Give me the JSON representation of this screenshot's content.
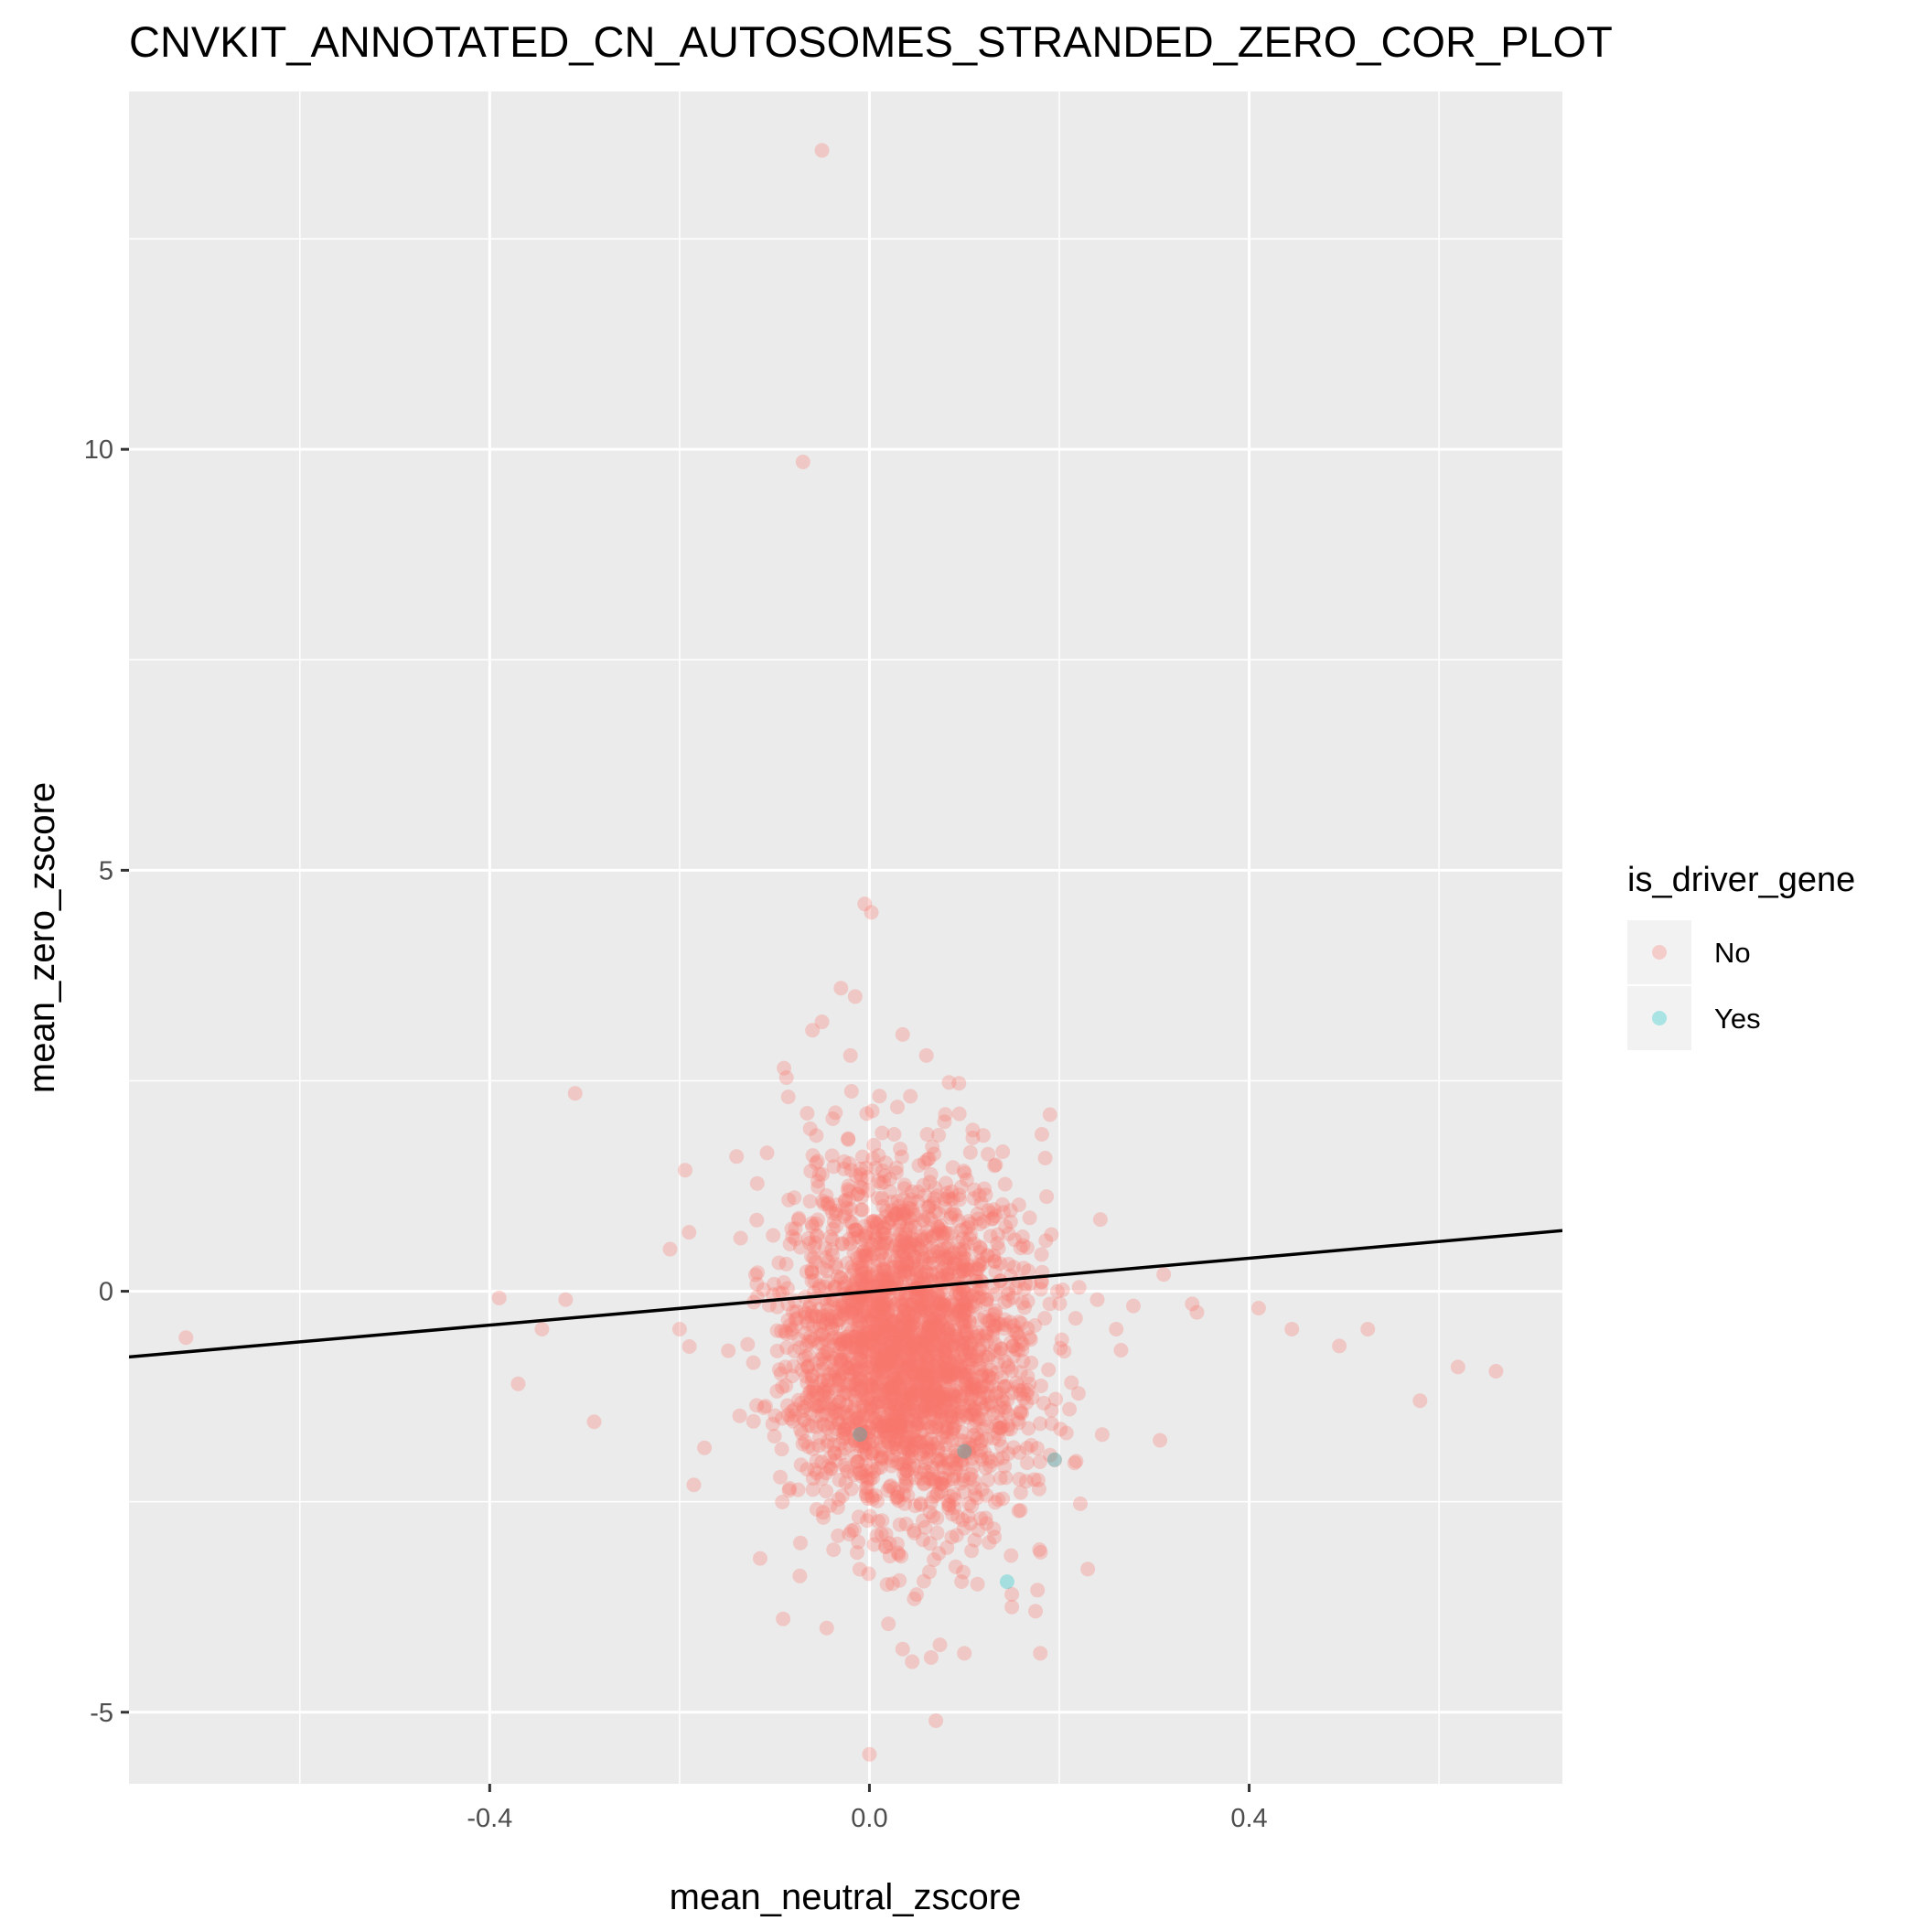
{
  "chart_data": {
    "type": "scatter",
    "title": "CNVKIT_ANNOTATED_CN_AUTOSOMES_STRANDED_ZERO_COR_PLOT",
    "xlabel": "mean_neutral_zscore",
    "ylabel": "mean_zero_zscore",
    "xlim": [
      -0.78,
      0.73
    ],
    "ylim": [
      -5.85,
      14.25
    ],
    "x_ticks": [
      -0.4,
      0.0,
      0.4
    ],
    "x_tick_labels": [
      "-0.4",
      "0.0",
      "0.4"
    ],
    "y_ticks": [
      -5,
      0,
      5,
      10
    ],
    "y_tick_labels": [
      "-5",
      "0",
      "5",
      "10"
    ],
    "grid": true,
    "legend": {
      "title": "is_driver_gene",
      "position": "right",
      "entries": [
        {
          "label": "No",
          "color": "#F8766D"
        },
        {
          "label": "Yes",
          "color": "#00BFC4"
        }
      ]
    },
    "colors": {
      "panel_background": "#EBEBEB",
      "grid": "#FFFFFF",
      "no": "#F8766D",
      "yes": "#00BFC4",
      "regression_line": "#000000"
    },
    "point_alpha": 0.3,
    "regression_line": {
      "x": [
        -0.78,
        0.73
      ],
      "y": [
        -0.78,
        0.72
      ]
    },
    "cluster": {
      "series": "No",
      "count": 2600,
      "x_mean": 0.04,
      "x_sd": 0.065,
      "y_mean": -0.7,
      "y_sd": 1.05
    },
    "series": [
      {
        "name": "No",
        "points": [
          [
            -0.05,
            13.55
          ],
          [
            -0.07,
            9.85
          ],
          [
            -0.005,
            4.6
          ],
          [
            0.002,
            4.5
          ],
          [
            -0.03,
            3.6
          ],
          [
            -0.015,
            3.5
          ],
          [
            -0.05,
            3.2
          ],
          [
            -0.06,
            3.1
          ],
          [
            0.035,
            3.05
          ],
          [
            0.06,
            2.8
          ],
          [
            -0.09,
            2.65
          ],
          [
            -0.02,
            2.8
          ],
          [
            -0.31,
            2.35
          ],
          [
            -0.14,
            1.6
          ],
          [
            0.12,
            1.85
          ],
          [
            0.08,
            2.1
          ],
          [
            -0.39,
            -0.08
          ],
          [
            -0.32,
            -0.1
          ],
          [
            -0.345,
            -0.45
          ],
          [
            -0.37,
            -1.1
          ],
          [
            -0.29,
            -1.55
          ],
          [
            -0.72,
            -0.55
          ],
          [
            -0.21,
            0.5
          ],
          [
            -0.19,
            0.7
          ],
          [
            -0.2,
            -0.45
          ],
          [
            -0.185,
            -2.3
          ],
          [
            0.31,
            0.2
          ],
          [
            0.34,
            -0.15
          ],
          [
            0.345,
            -0.25
          ],
          [
            0.41,
            -0.2
          ],
          [
            0.445,
            -0.45
          ],
          [
            0.495,
            -0.65
          ],
          [
            0.525,
            -0.45
          ],
          [
            0.58,
            -1.3
          ],
          [
            0.62,
            -0.9
          ],
          [
            0.66,
            -0.95
          ],
          [
            0.24,
            -0.1
          ],
          [
            0.26,
            -0.45
          ],
          [
            0.265,
            -0.7
          ],
          [
            0.23,
            -3.3
          ],
          [
            0.18,
            -4.3
          ],
          [
            0.175,
            -3.8
          ],
          [
            0.1,
            -4.3
          ],
          [
            0.07,
            -5.1
          ],
          [
            0.0,
            -5.5
          ],
          [
            0.045,
            -4.4
          ],
          [
            0.065,
            -4.35
          ],
          [
            -0.045,
            -4.0
          ],
          [
            0.02,
            -3.95
          ],
          [
            0.035,
            -4.25
          ],
          [
            0.15,
            -3.6
          ],
          [
            0.15,
            -3.75
          ]
        ]
      },
      {
        "name": "Yes",
        "points": [
          [
            -0.01,
            -1.7
          ],
          [
            0.1,
            -1.9
          ],
          [
            0.195,
            -2.0
          ],
          [
            0.145,
            -3.45
          ]
        ]
      }
    ]
  }
}
